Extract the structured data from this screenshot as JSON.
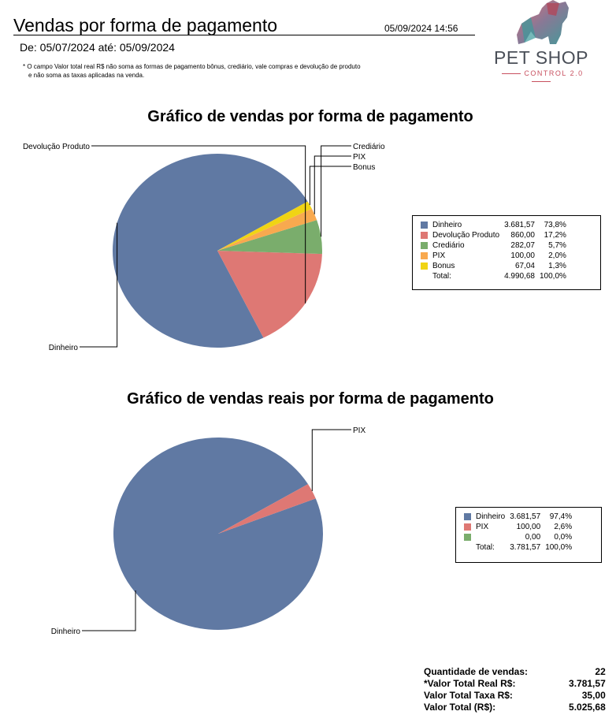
{
  "header": {
    "title": "Vendas por forma de pagamento",
    "datetime": "05/09/2024 14:56",
    "date_range": "De: 05/07/2024 até: 05/09/2024",
    "note_line1": "* O campo  Valor total real R$ não soma as formas de pagamento bônus, crediário, vale compras e devolução de produto",
    "note_line2": "e não soma as taxas aplicadas na venda."
  },
  "logo": {
    "name": "PET SHOP",
    "sub": "CONTROL 2.0",
    "icon": "dog-head-icon"
  },
  "chart_data": [
    {
      "type": "pie",
      "title": "Gráfico de vendas por forma de pagamento",
      "slices": [
        {
          "label": "Dinheiro",
          "value": 3681.57,
          "value_text": "3.681,57",
          "percent": "73,8%",
          "color": "#6079a3"
        },
        {
          "label": "Devolução Produto",
          "value": 860.0,
          "value_text": "860,00",
          "percent": "17,2%",
          "color": "#de7874"
        },
        {
          "label": "Crediário",
          "value": 282.07,
          "value_text": "282,07",
          "percent": "5,7%",
          "color": "#7aad6c"
        },
        {
          "label": "PIX",
          "value": 100.0,
          "value_text": "100,00",
          "percent": "2,0%",
          "color": "#f8a94f"
        },
        {
          "label": "Bonus",
          "value": 67.04,
          "value_text": "67,04",
          "percent": "1,3%",
          "color": "#f0d414"
        }
      ],
      "total_label": "Total:",
      "total_value": "4.990,68",
      "total_percent": "100,0%",
      "legend_position": "right"
    },
    {
      "type": "pie",
      "title": "Gráfico de vendas reais por forma de pagamento",
      "slices": [
        {
          "label": "Dinheiro",
          "value": 3681.57,
          "value_text": "3.681,57",
          "percent": "97,4%",
          "color": "#6079a3"
        },
        {
          "label": "PIX",
          "value": 100.0,
          "value_text": "100,00",
          "percent": "2,6%",
          "color": "#de7874"
        },
        {
          "label": "",
          "value": 0,
          "value_text": "0,00",
          "percent": "0,0%",
          "color": "#7aad6c"
        }
      ],
      "total_label": "Total:",
      "total_value": "3.781,57",
      "total_percent": "100,0%",
      "legend_position": "right"
    }
  ],
  "summary": {
    "qty_label": "Quantidade de vendas:",
    "qty_value": "22",
    "real_label": "*Valor Total Real R$:",
    "real_value": "3.781,57",
    "tax_label": "Valor Total Taxa R$:",
    "tax_value": "35,00",
    "total_label": "Valor Total (R$):",
    "total_value": "5.025,68"
  }
}
